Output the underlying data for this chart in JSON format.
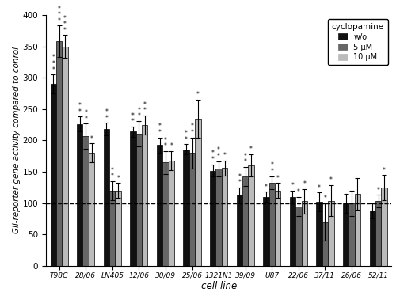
{
  "categories": [
    "T98G",
    "28/06",
    "LN405",
    "12/06",
    "30/09",
    "25/06",
    "1321N1",
    "39/09",
    "U87",
    "22/06",
    "37/11",
    "26/06",
    "52/11"
  ],
  "values_wo": [
    290,
    226,
    218,
    214,
    193,
    186,
    152,
    113,
    110,
    110,
    102,
    100,
    88
  ],
  "values_5uM": [
    358,
    207,
    120,
    211,
    165,
    180,
    155,
    143,
    133,
    95,
    70,
    100,
    103
  ],
  "values_10uM": [
    350,
    180,
    120,
    225,
    168,
    235,
    156,
    160,
    120,
    103,
    104,
    115,
    125
  ],
  "err_wo": [
    15,
    12,
    10,
    8,
    12,
    8,
    10,
    12,
    8,
    10,
    15,
    15,
    12
  ],
  "err_5uM": [
    25,
    20,
    15,
    20,
    18,
    25,
    12,
    15,
    10,
    15,
    30,
    20,
    10
  ],
  "err_10uM": [
    18,
    15,
    12,
    15,
    15,
    30,
    12,
    18,
    12,
    20,
    25,
    25,
    20
  ],
  "stars_wo": [
    "***",
    "**",
    "**",
    "**",
    "**",
    "**",
    "**",
    "**",
    "*",
    "*",
    "*",
    "",
    ""
  ],
  "stars_5uM": [
    "***",
    "**",
    "**",
    "**",
    "**",
    "**",
    "**",
    "**",
    "**",
    "*",
    "*",
    "",
    "*"
  ],
  "stars_10uM": [
    "***",
    "*",
    "*",
    "**",
    "*",
    "*",
    "*",
    "*",
    "*",
    "*",
    "*",
    "",
    "*"
  ],
  "color_wo": "#111111",
  "color_5uM": "#666666",
  "color_10uM": "#bbbbbb",
  "ylabel": "Gli-reporter gene activity compared to conrol",
  "xlabel": "cell line",
  "legend_title": "cyclopamine",
  "legend_labels": [
    "w/o",
    "5 μM",
    "10 μM"
  ],
  "ylim": [
    0,
    400
  ],
  "yticks": [
    0,
    50,
    100,
    150,
    200,
    250,
    300,
    350,
    400
  ],
  "hline_y": 100
}
